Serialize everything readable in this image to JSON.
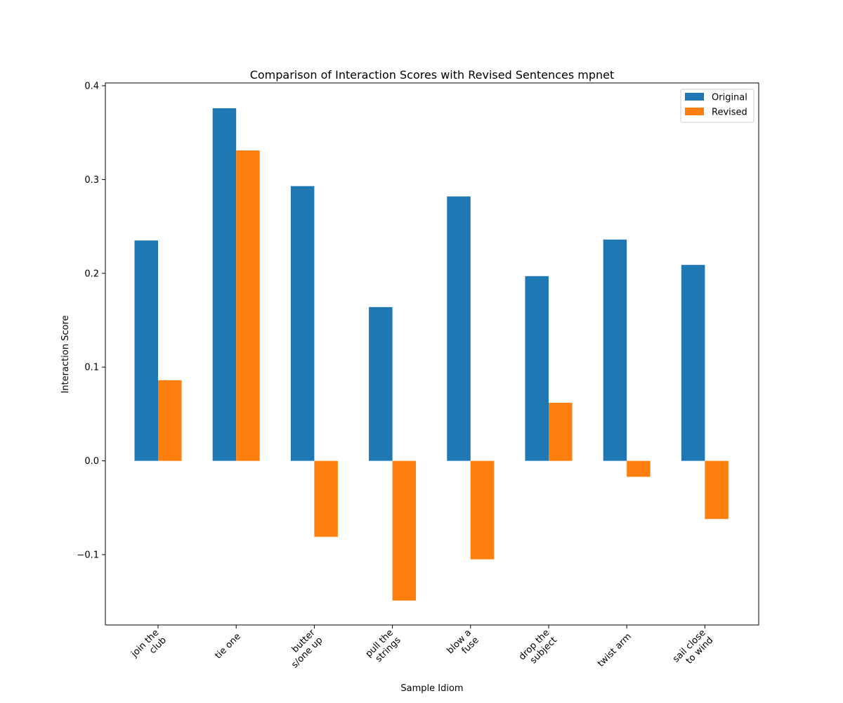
{
  "chart_data": {
    "type": "bar",
    "title": "Comparison of Interaction Scores with Revised Sentences mpnet",
    "xlabel": "Sample Idiom",
    "ylabel": "Interaction Score",
    "categories": [
      [
        "join the",
        "club"
      ],
      [
        "tie one"
      ],
      [
        "butter",
        "s/one up"
      ],
      [
        "pull the",
        "strings"
      ],
      [
        "blow a",
        "fuse"
      ],
      [
        "drop the",
        "subject"
      ],
      [
        "twist arm"
      ],
      [
        "sail close",
        "to wind"
      ]
    ],
    "series": [
      {
        "name": "Original",
        "color": "#1f77b4",
        "values": [
          0.235,
          0.376,
          0.293,
          0.164,
          0.282,
          0.197,
          0.236,
          0.209
        ]
      },
      {
        "name": "Revised",
        "color": "#ff7f0e",
        "values": [
          0.086,
          0.331,
          -0.081,
          -0.149,
          -0.105,
          0.062,
          -0.017,
          -0.062
        ]
      }
    ],
    "ylim": [
      -0.175,
      0.403
    ],
    "yticks": [
      -0.1,
      0.0,
      0.1,
      0.2,
      0.3,
      0.4
    ],
    "ytick_labels": [
      "−0.1",
      "0.0",
      "0.1",
      "0.2",
      "0.3",
      "0.4"
    ],
    "legend": "top-right",
    "grid": false
  }
}
